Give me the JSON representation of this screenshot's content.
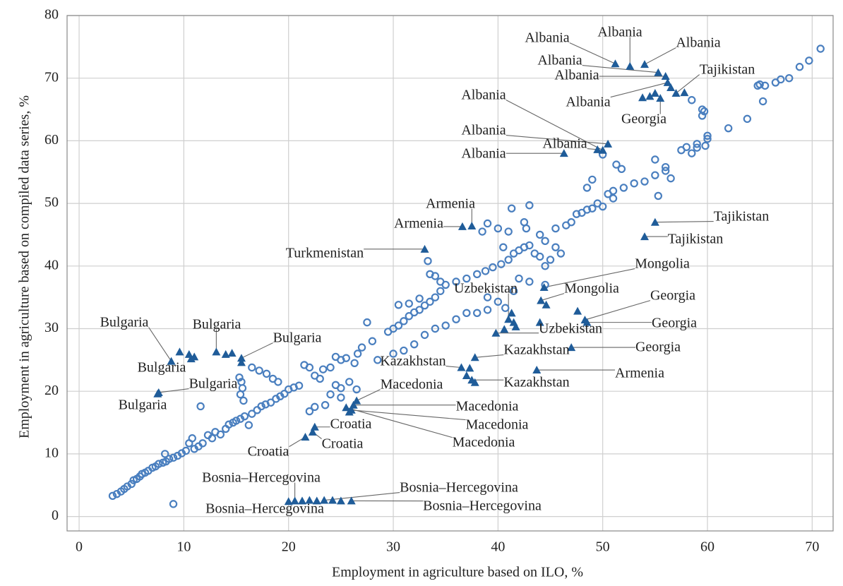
{
  "chart_data": {
    "type": "scatter",
    "x_label": "Employment in agriculture based on ILO, %",
    "y_label": "Employment in agriculture based on compiled data series, %",
    "xlim": [
      -1.15,
      72
    ],
    "ylim": [
      -2.3,
      80
    ],
    "xticks": [
      0,
      10,
      20,
      30,
      40,
      50,
      60,
      70
    ],
    "yticks": [
      0,
      10,
      20,
      30,
      40,
      50,
      60,
      70,
      80
    ],
    "grid": true,
    "series": [
      {
        "color": "#4a7fbf",
        "marker": "circle",
        "x": [
          3.2,
          3.6,
          4,
          4.3,
          4.6,
          5,
          5.2,
          5.5,
          5.8,
          6,
          6.3,
          6.6,
          7,
          7.3,
          7.6,
          8,
          8.3,
          8.2,
          8.6,
          9,
          9.4,
          9.8,
          10.2,
          10.5,
          10.8,
          11,
          11.4,
          11.8,
          12.3,
          12.7,
          13,
          13.5,
          14,
          14.3,
          14.7,
          15,
          15.4,
          15.8,
          16.2,
          16.5,
          17,
          17.4,
          17.8,
          18.3,
          18.8,
          19.2,
          19.6,
          20,
          20.5,
          21,
          11.6,
          15.3,
          15.5,
          15.6,
          15.4,
          15.7,
          16.5,
          17.2,
          17.9,
          18.5,
          19,
          21.5,
          22,
          22.5,
          23,
          23.3,
          24,
          24.5,
          25,
          25.5,
          26.3,
          26.6,
          24.5,
          25,
          25.8,
          26.5,
          22,
          22.5,
          23.5,
          24,
          25,
          27,
          28,
          29.5,
          30,
          30.5,
          31,
          31.5,
          32,
          32.5,
          33,
          33.5,
          34,
          34.5,
          35,
          30.5,
          31.5,
          32.5,
          33.5,
          34,
          34.5,
          33.3,
          27.5,
          28.5,
          30,
          31,
          32,
          33,
          34,
          35,
          36,
          37,
          38,
          39,
          36,
          37,
          38,
          38.8,
          39.5,
          40.3,
          41,
          41.5,
          42,
          42.5,
          43,
          43.5,
          44,
          44.5,
          45,
          40.5,
          42.5,
          43,
          41.3,
          39,
          38.5,
          40,
          41,
          42.7,
          44,
          44.5,
          45.5,
          46.5,
          47,
          47.5,
          48,
          48.5,
          49,
          49.5,
          50,
          50.5,
          48.5,
          49,
          51,
          45.5,
          46,
          42,
          43,
          44.5,
          40,
          40.7,
          41.5,
          39,
          51,
          52,
          53,
          54,
          55,
          56,
          55,
          56,
          56.5,
          51.3,
          51.8,
          50,
          57.5,
          58,
          58.5,
          59,
          59.8,
          60,
          60,
          59.5,
          59.7,
          59.5,
          58.5,
          62,
          63.8,
          65,
          65.3,
          65.5,
          66.5,
          67,
          67.8,
          68.8,
          69.7,
          70.8,
          64.8,
          59,
          55.3,
          9
        ],
        "y": [
          3.3,
          3.6,
          4,
          4.4,
          4.8,
          5.2,
          5.8,
          6,
          6.4,
          6.8,
          7,
          7.3,
          7.8,
          8,
          8.4,
          8.6,
          8.8,
          10,
          9.2,
          9.4,
          9.7,
          10.1,
          10.5,
          11.7,
          12.5,
          10.8,
          11.2,
          11.7,
          13,
          12.5,
          13.5,
          13.1,
          14,
          14.7,
          15,
          15.3,
          15.6,
          16,
          14.6,
          16.4,
          17,
          17.6,
          17.9,
          18.2,
          18.8,
          19.2,
          19.6,
          20.3,
          20.6,
          20.9,
          17.6,
          22.2,
          21.5,
          20.5,
          19.5,
          18.5,
          23.8,
          23.3,
          22.8,
          22,
          21.5,
          24.2,
          23.8,
          22.5,
          22,
          23.5,
          23.8,
          25.5,
          25,
          25.3,
          24.5,
          26,
          21,
          20.5,
          21.5,
          20.3,
          16.8,
          17.5,
          17.8,
          19.5,
          19,
          27,
          28,
          29.5,
          30,
          30.5,
          31.2,
          32,
          32.6,
          33,
          33.7,
          34.3,
          35,
          36,
          37,
          33.8,
          34,
          34.8,
          38.7,
          38.4,
          37.5,
          40.8,
          31,
          25,
          26,
          26.5,
          27.5,
          29,
          30,
          30.5,
          31.5,
          32.5,
          32.5,
          33,
          37.5,
          38,
          38.7,
          39.2,
          39.8,
          40.3,
          41,
          42,
          42.5,
          43,
          43.3,
          42,
          41.5,
          40,
          41,
          43,
          47,
          49.7,
          49.2,
          46.8,
          45.5,
          46,
          45.5,
          46,
          45,
          44,
          46,
          46.5,
          47,
          48.3,
          48.5,
          49,
          49.2,
          50,
          49.5,
          51.5,
          52.5,
          53.8,
          50.8,
          43,
          42,
          38,
          37.5,
          37,
          34.3,
          33.3,
          36,
          35,
          52,
          52.5,
          53.2,
          53.5,
          54.5,
          55.2,
          57,
          55.8,
          54,
          56.2,
          55.5,
          57.8,
          58.5,
          59,
          58,
          59.5,
          59.2,
          60.3,
          60.8,
          64,
          64.7,
          65,
          66.5,
          62,
          63.5,
          69,
          66.3,
          68.8,
          69.3,
          69.8,
          70,
          71.8,
          72.8,
          74.7,
          68.8,
          58.9,
          51.2,
          2
        ]
      },
      {
        "color": "#1f5c99",
        "marker": "triangle",
        "x": [
          51.2,
          52.6,
          54,
          55.3,
          56,
          56.2,
          56.5,
          57,
          57.8,
          53.8,
          54.5,
          55,
          55.5,
          46.3,
          49.5,
          50.5,
          50,
          55,
          54,
          36.6,
          37.5,
          43.7,
          33,
          48.3,
          48.5,
          47,
          44.4,
          44.1,
          44.6,
          47.6,
          44,
          39.8,
          40.6,
          41,
          41.3,
          41.5,
          41.7,
          37.8,
          36.5,
          37.3,
          37,
          37.5,
          37.8,
          26.5,
          26.2,
          26,
          25.5,
          25.8,
          22.5,
          22.3,
          21.6,
          20,
          20.6,
          21.3,
          22,
          22.7,
          23.4,
          24.2,
          25,
          26,
          8.8,
          9.6,
          10.5,
          11,
          10.7,
          13.1,
          14,
          14.6,
          15.5,
          15.5,
          7.5,
          7.6
        ],
        "y": [
          72.3,
          71.9,
          72.2,
          70.9,
          70.3,
          69.3,
          68.5,
          67.6,
          67.7,
          66.9,
          67.1,
          67.6,
          66.8,
          58,
          58.6,
          59.5,
          58.5,
          47,
          44.7,
          46.3,
          46.4,
          23.4,
          42.7,
          31.4,
          31,
          27,
          36.6,
          34.5,
          33.8,
          32.8,
          31,
          29.3,
          29.9,
          31.5,
          32.5,
          31,
          30.3,
          25.4,
          23.8,
          23.7,
          22.5,
          21.8,
          21.4,
          18.5,
          17.8,
          17,
          17.4,
          16.7,
          14.3,
          13.5,
          12.7,
          2.4,
          2.5,
          2.5,
          2.6,
          2.5,
          2.6,
          2.6,
          2.5,
          2.5,
          24.8,
          26.3,
          25.9,
          25.5,
          25.2,
          26.3,
          25.9,
          26.1,
          25.3,
          24.6,
          19.6,
          19.8
        ],
        "labels": [
          "Albania",
          "Albania",
          "Albania",
          "Albania",
          "Albania",
          "Albania",
          null,
          "Tajikistan",
          null,
          null,
          null,
          null,
          "Georgia",
          "Albania",
          "Albania",
          "Albania",
          "Albania",
          "Tajikistan",
          "Tajikistan",
          "Armenia",
          "Armenia",
          "Armenia",
          "Turkmenistan",
          "Georgia",
          "Georgia",
          "Georgia",
          "Mongolia",
          "Mongolia",
          null,
          null,
          null,
          "Uzbekistan",
          null,
          "Uzbekistan",
          null,
          null,
          null,
          "Kazakhstan",
          "Kazakhstan",
          null,
          null,
          "Kazakhstan",
          null,
          "Macedonia",
          "Macedonia",
          "Macedonia",
          "Macedonia",
          null,
          "Croatia",
          "Croatia",
          "Croatia",
          "Bosnia–Hercegovina",
          "Bosnia–Hercegovina",
          null,
          null,
          null,
          "Bosnia–Hercegovina",
          null,
          null,
          "Bosnia–Hercegovina",
          "Bulgaria",
          null,
          "Bulgaria",
          null,
          null,
          "Bulgaria",
          null,
          null,
          "Bulgaria",
          null,
          "Bulgaria",
          "Bulgaria"
        ]
      }
    ]
  }
}
